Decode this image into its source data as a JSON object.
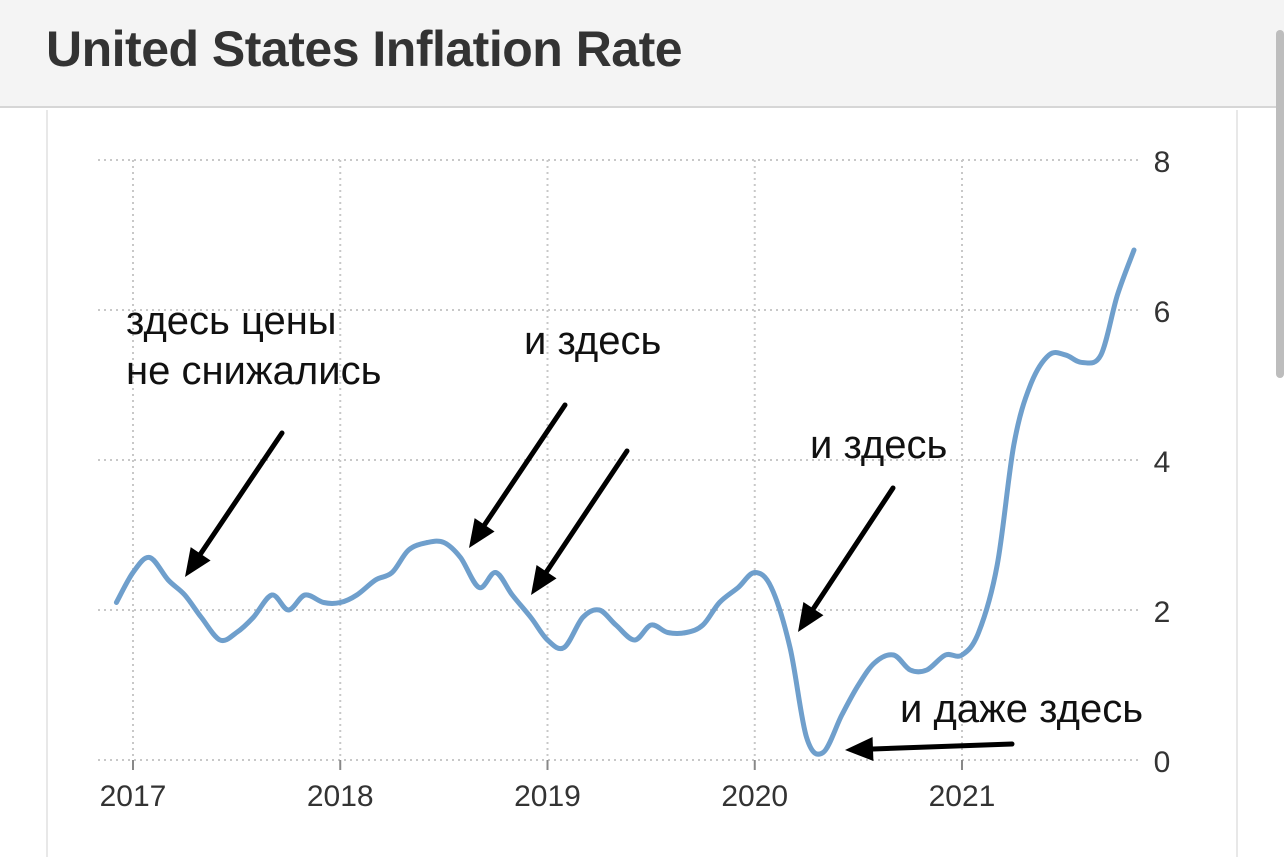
{
  "header": {
    "title": "United States Inflation Rate"
  },
  "annotations": {
    "a1_line1": "здесь цены",
    "a1_line2": "не снижались",
    "a2": "и здесь",
    "a3": "и здесь",
    "a4": "и даже здесь"
  },
  "colors": {
    "line": "#6f9fcc",
    "grid": "#c8c8c8",
    "arrow": "#000000"
  },
  "chart_data": {
    "type": "line",
    "title": "United States Inflation Rate",
    "xlabel": "",
    "ylabel": "",
    "xlim": [
      2016.9,
      2021.85
    ],
    "ylim": [
      0,
      8
    ],
    "x_ticks": [
      "2017",
      "2018",
      "2019",
      "2020",
      "2021"
    ],
    "y_ticks": [
      "0",
      "2",
      "4",
      "6",
      "8"
    ],
    "y_axis_side": "right",
    "grid": true,
    "series": [
      {
        "x": [
          2016.92,
          2017.0,
          2017.08,
          2017.17,
          2017.25,
          2017.33,
          2017.42,
          2017.5,
          2017.58,
          2017.67,
          2017.75,
          2017.83,
          2017.92,
          2018.0,
          2018.08,
          2018.17,
          2018.25,
          2018.33,
          2018.42,
          2018.5,
          2018.58,
          2018.67,
          2018.75,
          2018.83,
          2018.92,
          2019.0,
          2019.08,
          2019.17,
          2019.25,
          2019.33,
          2019.42,
          2019.5,
          2019.58,
          2019.67,
          2019.75,
          2019.83,
          2019.92,
          2020.0,
          2020.08,
          2020.17,
          2020.25,
          2020.33,
          2020.42,
          2020.5,
          2020.58,
          2020.67,
          2020.75,
          2020.83,
          2020.92,
          2021.0,
          2021.08,
          2021.17,
          2021.25,
          2021.33,
          2021.42,
          2021.5,
          2021.58,
          2021.67,
          2021.75,
          2021.83
        ],
        "y": [
          2.1,
          2.5,
          2.7,
          2.4,
          2.2,
          1.9,
          1.6,
          1.7,
          1.9,
          2.2,
          2.0,
          2.2,
          2.1,
          2.1,
          2.2,
          2.4,
          2.5,
          2.8,
          2.9,
          2.9,
          2.7,
          2.3,
          2.5,
          2.2,
          1.9,
          1.6,
          1.5,
          1.9,
          2.0,
          1.8,
          1.6,
          1.8,
          1.7,
          1.7,
          1.8,
          2.1,
          2.3,
          2.5,
          2.3,
          1.5,
          0.3,
          0.1,
          0.6,
          1.0,
          1.3,
          1.4,
          1.2,
          1.2,
          1.4,
          1.4,
          1.7,
          2.6,
          4.2,
          5.0,
          5.4,
          5.4,
          5.3,
          5.4,
          6.2,
          6.8
        ]
      }
    ]
  }
}
